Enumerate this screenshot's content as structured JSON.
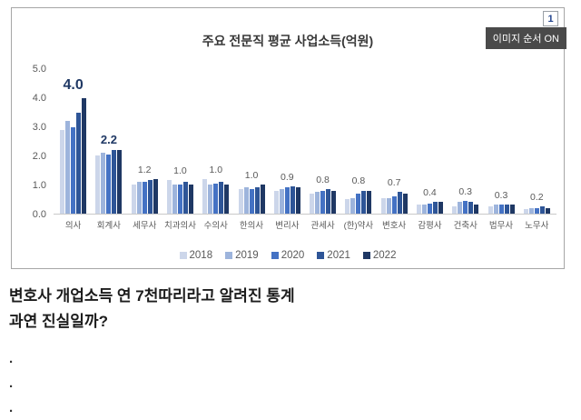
{
  "viewer": {
    "page_badge": "1",
    "image_order_label": "이미지 순서 ON"
  },
  "chart_data": {
    "type": "bar",
    "title": "주요 전문직 평균 사업소득(억원)",
    "categories": [
      "의사",
      "회계사",
      "세무사",
      "치과의사",
      "수의사",
      "한의사",
      "변리사",
      "관세사",
      "(한)약사",
      "변호사",
      "감평사",
      "건축사",
      "법무사",
      "노무사"
    ],
    "series": [
      {
        "name": "2018",
        "color": "#ccd6ea",
        "values": [
          2.9,
          2.0,
          1.0,
          1.15,
          1.2,
          0.85,
          0.8,
          0.7,
          0.5,
          0.55,
          0.3,
          0.25,
          0.25,
          0.15
        ]
      },
      {
        "name": "2019",
        "color": "#9db4dc",
        "values": [
          3.2,
          2.1,
          1.1,
          1.0,
          1.0,
          0.9,
          0.85,
          0.75,
          0.55,
          0.55,
          0.3,
          0.4,
          0.3,
          0.2
        ]
      },
      {
        "name": "2020",
        "color": "#4472c4",
        "values": [
          3.0,
          2.05,
          1.1,
          1.0,
          1.05,
          0.85,
          0.9,
          0.8,
          0.7,
          0.6,
          0.35,
          0.45,
          0.3,
          0.2
        ]
      },
      {
        "name": "2021",
        "color": "#2e5597",
        "values": [
          3.5,
          2.2,
          1.15,
          1.1,
          1.1,
          0.9,
          0.95,
          0.85,
          0.8,
          0.75,
          0.4,
          0.4,
          0.3,
          0.25
        ]
      },
      {
        "name": "2022",
        "color": "#1f3864",
        "values": [
          4.0,
          2.2,
          1.2,
          1.0,
          1.0,
          1.0,
          0.9,
          0.8,
          0.8,
          0.7,
          0.4,
          0.3,
          0.3,
          0.2
        ]
      }
    ],
    "group_value_labels": [
      "4.0",
      "2.2",
      "1.2",
      "1.0",
      "1.0",
      "1.0",
      "0.9",
      "0.8",
      "0.8",
      "0.7",
      "0.4",
      "0.3",
      "0.3",
      "0.2"
    ],
    "emphasized_label_count": 2,
    "y_ticks": [
      "5.0",
      "4.0",
      "3.0",
      "2.0",
      "1.0",
      "0.0"
    ],
    "ylim": [
      0,
      5
    ],
    "grid": false,
    "legend_position": "bottom",
    "label_color_emphasis": "#1f3864",
    "label_color_normal": "#595959"
  },
  "body_text": {
    "line1": "변호사 개업소득 연 7천따리라고 알려진 통계",
    "line2": "과연 진실일까?",
    "dots": [
      ".",
      ".",
      "."
    ]
  }
}
